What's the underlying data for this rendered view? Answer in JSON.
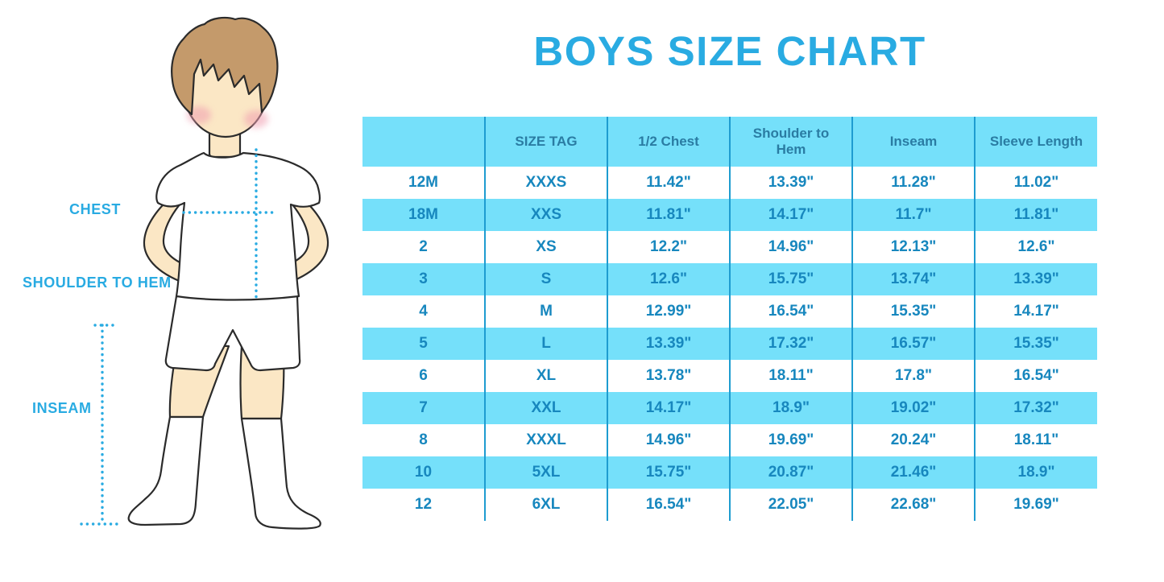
{
  "title": "BOYS SIZE CHART",
  "colors": {
    "accent_blue": "#29ABE2",
    "stripe_blue": "#75E0FA",
    "cell_text_blue": "#1787BE",
    "header_text_blue": "#2A7CA3",
    "grid_line_blue": "#1E9CD0",
    "skin": "#FBE7C5",
    "hair": "#C49A6B",
    "cheek": "#F09EB0",
    "outline": "#2B2B2B"
  },
  "figure": {
    "labels": {
      "chest": "CHEST",
      "shoulder_to_hem": "SHOULDER TO HEM",
      "inseam": "INSEAM"
    }
  },
  "chart_data": {
    "type": "table",
    "title": "BOYS SIZE CHART",
    "columns": [
      "",
      "SIZE TAG",
      "1/2 Chest",
      "Shoulder to Hem",
      "Inseam",
      "Sleeve Length"
    ],
    "rows": [
      [
        "12M",
        "XXXS",
        "11.42\"",
        "13.39\"",
        "11.28\"",
        "11.02\""
      ],
      [
        "18M",
        "XXS",
        "11.81\"",
        "14.17\"",
        "11.7\"",
        "11.81\""
      ],
      [
        "2",
        "XS",
        "12.2\"",
        "14.96\"",
        "12.13\"",
        "12.6\""
      ],
      [
        "3",
        "S",
        "12.6\"",
        "15.75\"",
        "13.74\"",
        "13.39\""
      ],
      [
        "4",
        "M",
        "12.99\"",
        "16.54\"",
        "15.35\"",
        "14.17\""
      ],
      [
        "5",
        "L",
        "13.39\"",
        "17.32\"",
        "16.57\"",
        "15.35\""
      ],
      [
        "6",
        "XL",
        "13.78\"",
        "18.11\"",
        "17.8\"",
        "16.54\""
      ],
      [
        "7",
        "XXL",
        "14.17\"",
        "18.9\"",
        "19.02\"",
        "17.32\""
      ],
      [
        "8",
        "XXXL",
        "14.96\"",
        "19.69\"",
        "20.24\"",
        "18.11\""
      ],
      [
        "10",
        "5XL",
        "15.75\"",
        "20.87\"",
        "21.46\"",
        "18.9\""
      ],
      [
        "12",
        "6XL",
        "16.54\"",
        "22.05\"",
        "22.68\"",
        "19.69\""
      ]
    ],
    "striping": "rows alternate white / light blue starting white",
    "grid": "vertical separators only"
  }
}
